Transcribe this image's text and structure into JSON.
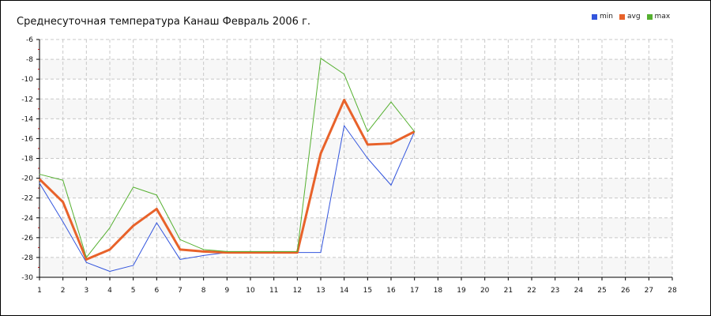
{
  "chart_data": {
    "type": "line",
    "title": "Среднесуточная температура Канаш  Февраль 2006 г.",
    "xlabel": "",
    "ylabel": "",
    "xlim": [
      1,
      28
    ],
    "ylim": [
      -30,
      -6
    ],
    "x_ticks": [
      1,
      2,
      3,
      4,
      5,
      6,
      7,
      8,
      9,
      10,
      11,
      12,
      13,
      14,
      15,
      16,
      17,
      18,
      19,
      20,
      21,
      22,
      23,
      24,
      25,
      26,
      27,
      28
    ],
    "y_ticks": [
      -30,
      -28,
      -26,
      -24,
      -22,
      -20,
      -18,
      -16,
      -14,
      -12,
      -10,
      -8,
      -6
    ],
    "grid": true,
    "legend_position": "top-right",
    "x": [
      1,
      2,
      3,
      4,
      5,
      6,
      7,
      8,
      9,
      10,
      11,
      12,
      13,
      14,
      15,
      16,
      17
    ],
    "series": [
      {
        "name": "min",
        "color": "#3355dd",
        "values": [
          -20.5,
          -24.4,
          -28.5,
          -29.4,
          -28.8,
          -24.5,
          -28.2,
          -27.8,
          -27.5,
          -27.5,
          -27.5,
          -27.5,
          -27.5,
          -14.7,
          -18.0,
          -20.7,
          -15.3
        ]
      },
      {
        "name": "avg",
        "color": "#e8622a",
        "values": [
          -20.1,
          -22.4,
          -28.2,
          -27.2,
          -24.8,
          -23.1,
          -27.2,
          -27.4,
          -27.5,
          -27.5,
          -27.5,
          -27.5,
          -17.5,
          -12.1,
          -16.6,
          -16.5,
          -15.3
        ]
      },
      {
        "name": "max",
        "color": "#55b030",
        "values": [
          -19.6,
          -20.2,
          -28.0,
          -25.0,
          -20.9,
          -21.7,
          -26.2,
          -27.2,
          -27.4,
          -27.4,
          -27.4,
          -27.4,
          -7.9,
          -9.5,
          -15.3,
          -12.3,
          -15.3
        ]
      }
    ]
  }
}
